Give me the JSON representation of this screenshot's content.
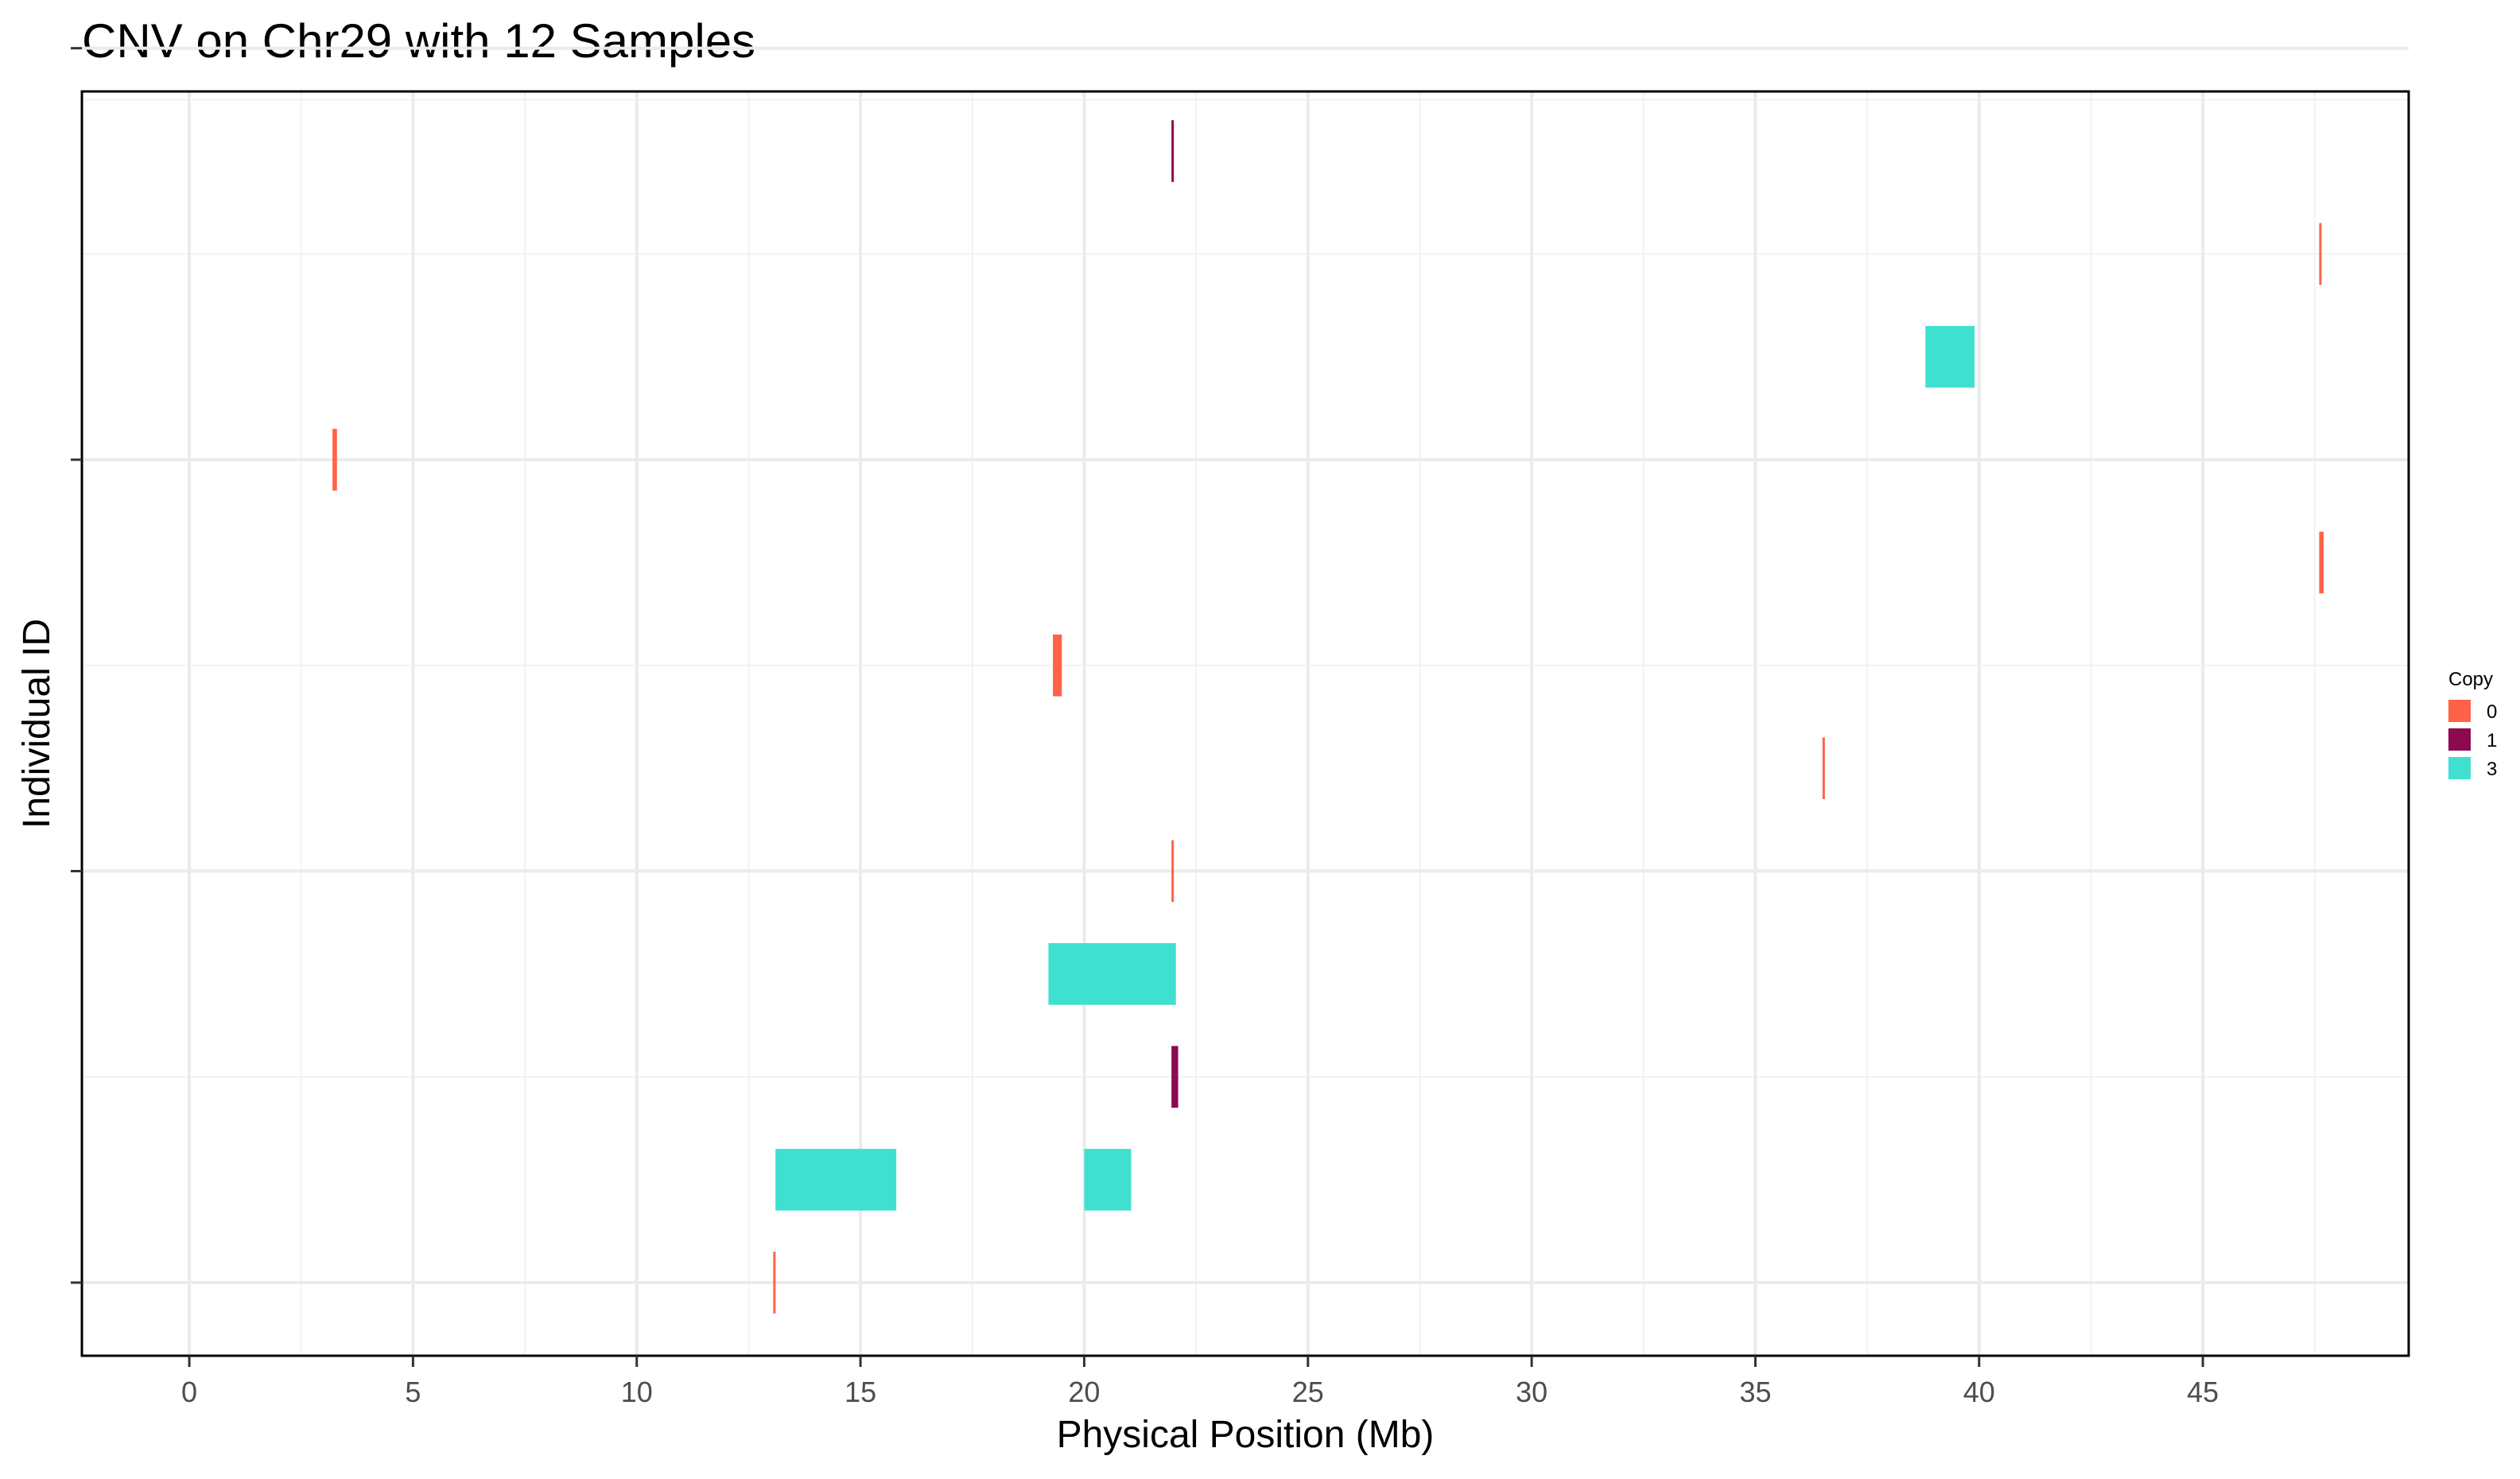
{
  "chart_data": {
    "type": "bar",
    "subtype": "horizontal-segments",
    "title": "CNV on Chr29 with 12 Samples",
    "xlabel": "Physical Position (Mb)",
    "ylabel": "Individual ID",
    "xlim": [
      -2.4,
      49.6
    ],
    "x_ticks": [
      0,
      5,
      10,
      15,
      20,
      25,
      30,
      35,
      40,
      45
    ],
    "x_tick_labels": [
      "0",
      "5",
      "10",
      "15",
      "20",
      "25",
      "30",
      "35",
      "40",
      "45"
    ],
    "n_samples": 12,
    "y_tick_labels": [],
    "grid": true,
    "legend": {
      "title": "Copy",
      "position": "right",
      "entries": [
        {
          "label": "0",
          "color": "#FF6347"
        },
        {
          "label": "1",
          "color": "#8B0A50"
        },
        {
          "label": "3",
          "color": "#40E0D0"
        }
      ]
    },
    "segments": [
      {
        "sample": 12,
        "start": 21.95,
        "end": 22.0,
        "copy": "1"
      },
      {
        "sample": 11,
        "start": 47.6,
        "end": 47.65,
        "copy": "0"
      },
      {
        "sample": 10,
        "start": 38.8,
        "end": 39.9,
        "copy": "3"
      },
      {
        "sample": 9,
        "start": 3.2,
        "end": 3.3,
        "copy": "0"
      },
      {
        "sample": 8,
        "start": 47.6,
        "end": 47.7,
        "copy": "0"
      },
      {
        "sample": 7,
        "start": 19.3,
        "end": 19.5,
        "copy": "0"
      },
      {
        "sample": 6,
        "start": 36.5,
        "end": 36.55,
        "copy": "0"
      },
      {
        "sample": 5,
        "start": 21.95,
        "end": 22.0,
        "copy": "0"
      },
      {
        "sample": 4,
        "start": 19.2,
        "end": 22.05,
        "copy": "3"
      },
      {
        "sample": 3,
        "start": 21.95,
        "end": 22.1,
        "copy": "1"
      },
      {
        "sample": 2,
        "start": 13.1,
        "end": 15.8,
        "copy": "3"
      },
      {
        "sample": 2,
        "start": 20.0,
        "end": 21.05,
        "copy": "3"
      },
      {
        "sample": 1,
        "start": 13.05,
        "end": 13.1,
        "copy": "0"
      }
    ]
  }
}
